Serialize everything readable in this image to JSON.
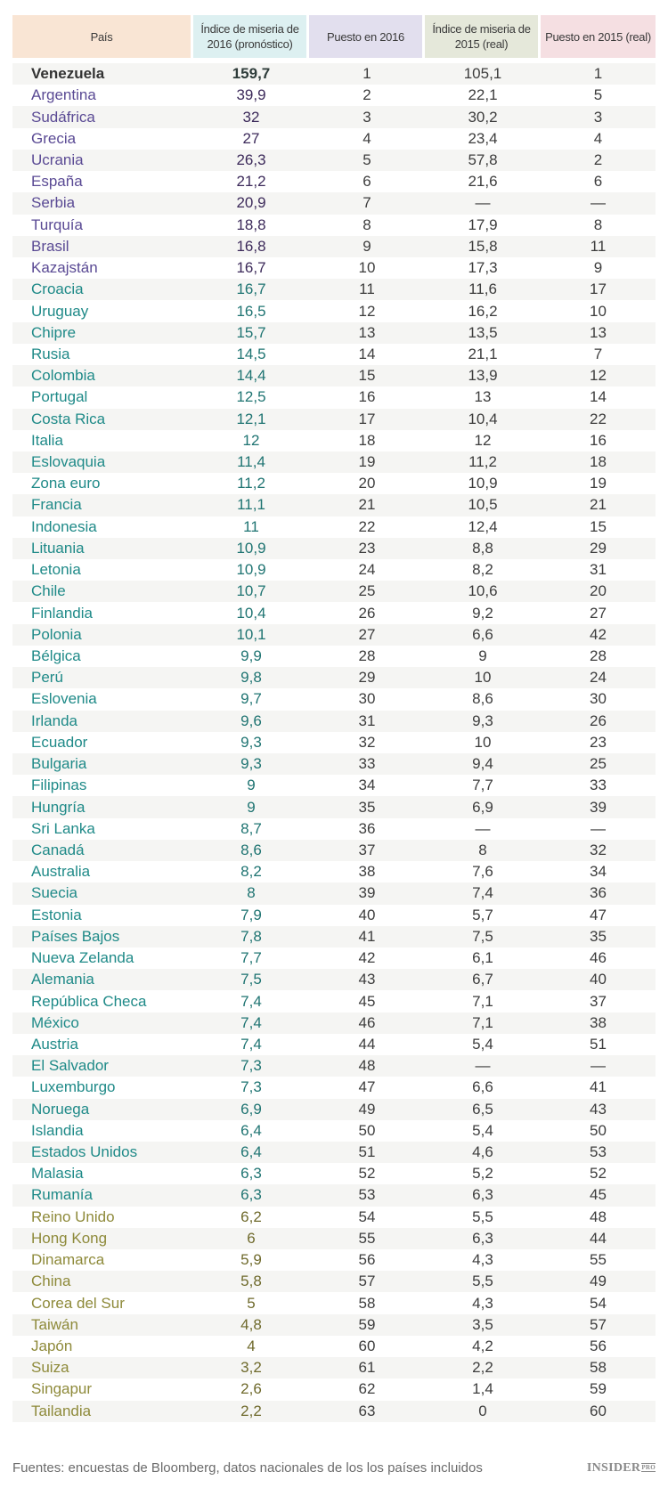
{
  "table": {
    "headers": [
      {
        "label": "País",
        "bg": "#f9e5d4"
      },
      {
        "label": "Índice de miseria de 2016 (pronóstico)",
        "bg": "#ddf0f1"
      },
      {
        "label": "Puesto en 2016",
        "bg": "#e2dfee"
      },
      {
        "label": "Índice de miseria de 2015 (real)",
        "bg": "#e5e8da"
      },
      {
        "label": "Puesto en 2015 (real)",
        "bg": "#f5dfe2"
      }
    ],
    "colors": {
      "first": "#2e3c3a",
      "purple": "#5a4a94",
      "purple_value": "#3c2a5a",
      "teal": "#1f8a88",
      "teal_value": "#1f7472",
      "olive": "#8e8a3a",
      "olive_value": "#6f6a2c",
      "neutral": "#3d3d3d"
    },
    "rows": [
      {
        "country": "Venezuela",
        "idx2016": "159,7",
        "rank2016": "1",
        "idx2015": "105,1",
        "rank2015": "1",
        "group": "first"
      },
      {
        "country": "Argentina",
        "idx2016": "39,9",
        "rank2016": "2",
        "idx2015": "22,1",
        "rank2015": "5",
        "group": "purple"
      },
      {
        "country": "Sudáfrica",
        "idx2016": "32",
        "rank2016": "3",
        "idx2015": "30,2",
        "rank2015": "3",
        "group": "purple"
      },
      {
        "country": "Grecia",
        "idx2016": "27",
        "rank2016": "4",
        "idx2015": "23,4",
        "rank2015": "4",
        "group": "purple"
      },
      {
        "country": "Ucrania",
        "idx2016": "26,3",
        "rank2016": "5",
        "idx2015": "57,8",
        "rank2015": "2",
        "group": "purple"
      },
      {
        "country": "España",
        "idx2016": "21,2",
        "rank2016": "6",
        "idx2015": "21,6",
        "rank2015": "6",
        "group": "purple"
      },
      {
        "country": "Serbia",
        "idx2016": "20,9",
        "rank2016": "7",
        "idx2015": "—",
        "rank2015": "—",
        "group": "purple"
      },
      {
        "country": "Turquía",
        "idx2016": "18,8",
        "rank2016": "8",
        "idx2015": "17,9",
        "rank2015": "8",
        "group": "purple"
      },
      {
        "country": "Brasil",
        "idx2016": "16,8",
        "rank2016": "9",
        "idx2015": "15,8",
        "rank2015": "11",
        "group": "purple"
      },
      {
        "country": "Kazajstán",
        "idx2016": "16,7",
        "rank2016": "10",
        "idx2015": "17,3",
        "rank2015": "9",
        "group": "purple"
      },
      {
        "country": "Croacia",
        "idx2016": "16,7",
        "rank2016": "11",
        "idx2015": "11,6",
        "rank2015": "17",
        "group": "teal"
      },
      {
        "country": "Uruguay",
        "idx2016": "16,5",
        "rank2016": "12",
        "idx2015": "16,2",
        "rank2015": "10",
        "group": "teal"
      },
      {
        "country": "Chipre",
        "idx2016": "15,7",
        "rank2016": "13",
        "idx2015": "13,5",
        "rank2015": "13",
        "group": "teal"
      },
      {
        "country": "Rusia",
        "idx2016": "14,5",
        "rank2016": "14",
        "idx2015": "21,1",
        "rank2015": "7",
        "group": "teal"
      },
      {
        "country": "Colombia",
        "idx2016": "14,4",
        "rank2016": "15",
        "idx2015": "13,9",
        "rank2015": "12",
        "group": "teal"
      },
      {
        "country": "Portugal",
        "idx2016": "12,5",
        "rank2016": "16",
        "idx2015": "13",
        "rank2015": "14",
        "group": "teal"
      },
      {
        "country": "Costa Rica",
        "idx2016": "12,1",
        "rank2016": "17",
        "idx2015": "10,4",
        "rank2015": "22",
        "group": "teal"
      },
      {
        "country": "Italia",
        "idx2016": "12",
        "rank2016": "18",
        "idx2015": "12",
        "rank2015": "16",
        "group": "teal"
      },
      {
        "country": "Eslovaquia",
        "idx2016": "11,4",
        "rank2016": "19",
        "idx2015": "11,2",
        "rank2015": "18",
        "group": "teal"
      },
      {
        "country": "Zona euro",
        "idx2016": "11,2",
        "rank2016": "20",
        "idx2015": "10,9",
        "rank2015": "19",
        "group": "teal"
      },
      {
        "country": "Francia",
        "idx2016": "11,1",
        "rank2016": "21",
        "idx2015": "10,5",
        "rank2015": "21",
        "group": "teal"
      },
      {
        "country": "Indonesia",
        "idx2016": "11",
        "rank2016": "22",
        "idx2015": "12,4",
        "rank2015": "15",
        "group": "teal"
      },
      {
        "country": "Lituania",
        "idx2016": "10,9",
        "rank2016": "23",
        "idx2015": "8,8",
        "rank2015": "29",
        "group": "teal"
      },
      {
        "country": "Letonia",
        "idx2016": "10,9",
        "rank2016": "24",
        "idx2015": "8,2",
        "rank2015": "31",
        "group": "teal"
      },
      {
        "country": "Chile",
        "idx2016": "10,7",
        "rank2016": "25",
        "idx2015": "10,6",
        "rank2015": "20",
        "group": "teal"
      },
      {
        "country": "Finlandia",
        "idx2016": "10,4",
        "rank2016": "26",
        "idx2015": "9,2",
        "rank2015": "27",
        "group": "teal"
      },
      {
        "country": "Polonia",
        "idx2016": "10,1",
        "rank2016": "27",
        "idx2015": "6,6",
        "rank2015": "42",
        "group": "teal"
      },
      {
        "country": "Bélgica",
        "idx2016": "9,9",
        "rank2016": "28",
        "idx2015": "9",
        "rank2015": "28",
        "group": "teal"
      },
      {
        "country": "Perú",
        "idx2016": "9,8",
        "rank2016": "29",
        "idx2015": "10",
        "rank2015": "24",
        "group": "teal"
      },
      {
        "country": "Eslovenia",
        "idx2016": "9,7",
        "rank2016": "30",
        "idx2015": "8,6",
        "rank2015": "30",
        "group": "teal"
      },
      {
        "country": "Irlanda",
        "idx2016": "9,6",
        "rank2016": "31",
        "idx2015": "9,3",
        "rank2015": "26",
        "group": "teal"
      },
      {
        "country": "Ecuador",
        "idx2016": "9,3",
        "rank2016": "32",
        "idx2015": "10",
        "rank2015": "23",
        "group": "teal"
      },
      {
        "country": "Bulgaria",
        "idx2016": "9,3",
        "rank2016": "33",
        "idx2015": "9,4",
        "rank2015": "25",
        "group": "teal"
      },
      {
        "country": "Filipinas",
        "idx2016": "9",
        "rank2016": "34",
        "idx2015": "7,7",
        "rank2015": "33",
        "group": "teal"
      },
      {
        "country": "Hungría",
        "idx2016": "9",
        "rank2016": "35",
        "idx2015": "6,9",
        "rank2015": "39",
        "group": "teal"
      },
      {
        "country": "Sri Lanka",
        "idx2016": "8,7",
        "rank2016": "36",
        "idx2015": "—",
        "rank2015": "—",
        "group": "teal"
      },
      {
        "country": "Canadá",
        "idx2016": "8,6",
        "rank2016": "37",
        "idx2015": "8",
        "rank2015": "32",
        "group": "teal"
      },
      {
        "country": "Australia",
        "idx2016": "8,2",
        "rank2016": "38",
        "idx2015": "7,6",
        "rank2015": "34",
        "group": "teal"
      },
      {
        "country": "Suecia",
        "idx2016": "8",
        "rank2016": "39",
        "idx2015": "7,4",
        "rank2015": "36",
        "group": "teal"
      },
      {
        "country": "Estonia",
        "idx2016": "7,9",
        "rank2016": "40",
        "idx2015": "5,7",
        "rank2015": "47",
        "group": "teal"
      },
      {
        "country": "Países Bajos",
        "idx2016": "7,8",
        "rank2016": "41",
        "idx2015": "7,5",
        "rank2015": "35",
        "group": "teal"
      },
      {
        "country": "Nueva Zelanda",
        "idx2016": "7,7",
        "rank2016": "42",
        "idx2015": "6,1",
        "rank2015": "46",
        "group": "teal"
      },
      {
        "country": "Alemania",
        "idx2016": "7,5",
        "rank2016": "43",
        "idx2015": "6,7",
        "rank2015": "40",
        "group": "teal"
      },
      {
        "country": "República Checa",
        "idx2016": "7,4",
        "rank2016": "45",
        "idx2015": "7,1",
        "rank2015": "37",
        "group": "teal"
      },
      {
        "country": "México",
        "idx2016": "7,4",
        "rank2016": "46",
        "idx2015": "7,1",
        "rank2015": "38",
        "group": "teal"
      },
      {
        "country": "Austria",
        "idx2016": "7,4",
        "rank2016": "44",
        "idx2015": "5,4",
        "rank2015": "51",
        "group": "teal"
      },
      {
        "country": "El Salvador",
        "idx2016": "7,3",
        "rank2016": "48",
        "idx2015": "—",
        "rank2015": "—",
        "group": "teal"
      },
      {
        "country": "Luxemburgo",
        "idx2016": "7,3",
        "rank2016": "47",
        "idx2015": "6,6",
        "rank2015": "41",
        "group": "teal"
      },
      {
        "country": "Noruega",
        "idx2016": "6,9",
        "rank2016": "49",
        "idx2015": "6,5",
        "rank2015": "43",
        "group": "teal"
      },
      {
        "country": "Islandia",
        "idx2016": "6,4",
        "rank2016": "50",
        "idx2015": "5,4",
        "rank2015": "50",
        "group": "teal"
      },
      {
        "country": "Estados Unidos",
        "idx2016": "6,4",
        "rank2016": "51",
        "idx2015": "4,6",
        "rank2015": "53",
        "group": "teal"
      },
      {
        "country": "Malasia",
        "idx2016": "6,3",
        "rank2016": "52",
        "idx2015": "5,2",
        "rank2015": "52",
        "group": "teal"
      },
      {
        "country": "Rumanía",
        "idx2016": "6,3",
        "rank2016": "53",
        "idx2015": "6,3",
        "rank2015": "45",
        "group": "teal"
      },
      {
        "country": "Reino Unido",
        "idx2016": "6,2",
        "rank2016": "54",
        "idx2015": "5,5",
        "rank2015": "48",
        "group": "olive"
      },
      {
        "country": "Hong Kong",
        "idx2016": "6",
        "rank2016": "55",
        "idx2015": "6,3",
        "rank2015": "44",
        "group": "olive"
      },
      {
        "country": "Dinamarca",
        "idx2016": "5,9",
        "rank2016": "56",
        "idx2015": "4,3",
        "rank2015": "55",
        "group": "olive"
      },
      {
        "country": "China",
        "idx2016": "5,8",
        "rank2016": "57",
        "idx2015": "5,5",
        "rank2015": "49",
        "group": "olive"
      },
      {
        "country": "Corea del Sur",
        "idx2016": "5",
        "rank2016": "58",
        "idx2015": "4,3",
        "rank2015": "54",
        "group": "olive"
      },
      {
        "country": "Taiwán",
        "idx2016": "4,8",
        "rank2016": "59",
        "idx2015": "3,5",
        "rank2015": "57",
        "group": "olive"
      },
      {
        "country": "Japón",
        "idx2016": "4",
        "rank2016": "60",
        "idx2015": "4,2",
        "rank2015": "56",
        "group": "olive"
      },
      {
        "country": "Suiza",
        "idx2016": "3,2",
        "rank2016": "61",
        "idx2015": "2,2",
        "rank2015": "58",
        "group": "olive"
      },
      {
        "country": "Singapur",
        "idx2016": "2,6",
        "rank2016": "62",
        "idx2015": "1,4",
        "rank2015": "59",
        "group": "olive"
      },
      {
        "country": "Tailandia",
        "idx2016": "2,2",
        "rank2016": "63",
        "idx2015": "0",
        "rank2015": "60",
        "group": "olive"
      }
    ]
  },
  "footer": {
    "source": "Fuentes: encuestas de Bloomberg, datos nacionales de los los países incluidos",
    "logo_main": "INSIDER",
    "logo_suffix": "PRO"
  },
  "chart_data": {
    "type": "table",
    "title": "",
    "columns": [
      "País",
      "Índice de miseria de 2016 (pronóstico)",
      "Puesto en 2016",
      "Índice de miseria de 2015 (real)",
      "Puesto en 2015 (real)"
    ],
    "rows": [
      [
        "Venezuela",
        159.7,
        1,
        105.1,
        1
      ],
      [
        "Argentina",
        39.9,
        2,
        22.1,
        5
      ],
      [
        "Sudáfrica",
        32,
        3,
        30.2,
        3
      ],
      [
        "Grecia",
        27,
        4,
        23.4,
        4
      ],
      [
        "Ucrania",
        26.3,
        5,
        57.8,
        2
      ],
      [
        "España",
        21.2,
        6,
        21.6,
        6
      ],
      [
        "Serbia",
        20.9,
        7,
        null,
        null
      ],
      [
        "Turquía",
        18.8,
        8,
        17.9,
        8
      ],
      [
        "Brasil",
        16.8,
        9,
        15.8,
        11
      ],
      [
        "Kazajstán",
        16.7,
        10,
        17.3,
        9
      ],
      [
        "Croacia",
        16.7,
        11,
        11.6,
        17
      ],
      [
        "Uruguay",
        16.5,
        12,
        16.2,
        10
      ],
      [
        "Chipre",
        15.7,
        13,
        13.5,
        13
      ],
      [
        "Rusia",
        14.5,
        14,
        21.1,
        7
      ],
      [
        "Colombia",
        14.4,
        15,
        13.9,
        12
      ],
      [
        "Portugal",
        12.5,
        16,
        13,
        14
      ],
      [
        "Costa Rica",
        12.1,
        17,
        10.4,
        22
      ],
      [
        "Italia",
        12,
        18,
        12,
        16
      ],
      [
        "Eslovaquia",
        11.4,
        19,
        11.2,
        18
      ],
      [
        "Zona euro",
        11.2,
        20,
        10.9,
        19
      ],
      [
        "Francia",
        11.1,
        21,
        10.5,
        21
      ],
      [
        "Indonesia",
        11,
        22,
        12.4,
        15
      ],
      [
        "Lituania",
        10.9,
        23,
        8.8,
        29
      ],
      [
        "Letonia",
        10.9,
        24,
        8.2,
        31
      ],
      [
        "Chile",
        10.7,
        25,
        10.6,
        20
      ],
      [
        "Finlandia",
        10.4,
        26,
        9.2,
        27
      ],
      [
        "Polonia",
        10.1,
        27,
        6.6,
        42
      ],
      [
        "Bélgica",
        9.9,
        28,
        9,
        28
      ],
      [
        "Perú",
        9.8,
        29,
        10,
        24
      ],
      [
        "Eslovenia",
        9.7,
        30,
        8.6,
        30
      ],
      [
        "Irlanda",
        9.6,
        31,
        9.3,
        26
      ],
      [
        "Ecuador",
        9.3,
        32,
        10,
        23
      ],
      [
        "Bulgaria",
        9.3,
        33,
        9.4,
        25
      ],
      [
        "Filipinas",
        9,
        34,
        7.7,
        33
      ],
      [
        "Hungría",
        9,
        35,
        6.9,
        39
      ],
      [
        "Sri Lanka",
        8.7,
        36,
        null,
        null
      ],
      [
        "Canadá",
        8.6,
        37,
        8,
        32
      ],
      [
        "Australia",
        8.2,
        38,
        7.6,
        34
      ],
      [
        "Suecia",
        8,
        39,
        7.4,
        36
      ],
      [
        "Estonia",
        7.9,
        40,
        5.7,
        47
      ],
      [
        "Países Bajos",
        7.8,
        41,
        7.5,
        35
      ],
      [
        "Nueva Zelanda",
        7.7,
        42,
        6.1,
        46
      ],
      [
        "Alemania",
        7.5,
        43,
        6.7,
        40
      ],
      [
        "República Checa",
        7.4,
        45,
        7.1,
        37
      ],
      [
        "México",
        7.4,
        46,
        7.1,
        38
      ],
      [
        "Austria",
        7.4,
        44,
        5.4,
        51
      ],
      [
        "El Salvador",
        7.3,
        48,
        null,
        null
      ],
      [
        "Luxemburgo",
        7.3,
        47,
        6.6,
        41
      ],
      [
        "Noruega",
        6.9,
        49,
        6.5,
        43
      ],
      [
        "Islandia",
        6.4,
        50,
        5.4,
        50
      ],
      [
        "Estados Unidos",
        6.4,
        51,
        4.6,
        53
      ],
      [
        "Malasia",
        6.3,
        52,
        5.2,
        52
      ],
      [
        "Rumanía",
        6.3,
        53,
        6.3,
        45
      ],
      [
        "Reino Unido",
        6.2,
        54,
        5.5,
        48
      ],
      [
        "Hong Kong",
        6,
        55,
        6.3,
        44
      ],
      [
        "Dinamarca",
        5.9,
        56,
        4.3,
        55
      ],
      [
        "China",
        5.8,
        57,
        5.5,
        49
      ],
      [
        "Corea del Sur",
        5,
        58,
        4.3,
        54
      ],
      [
        "Taiwán",
        4.8,
        59,
        3.5,
        57
      ],
      [
        "Japón",
        4,
        60,
        4.2,
        56
      ],
      [
        "Suiza",
        3.2,
        61,
        2.2,
        58
      ],
      [
        "Singapur",
        2.6,
        62,
        1.4,
        59
      ],
      [
        "Tailandia",
        2.2,
        63,
        0,
        60
      ]
    ],
    "annotations": [
      "Fuentes: encuestas de Bloomberg, datos nacionales de los los países incluidos"
    ]
  }
}
